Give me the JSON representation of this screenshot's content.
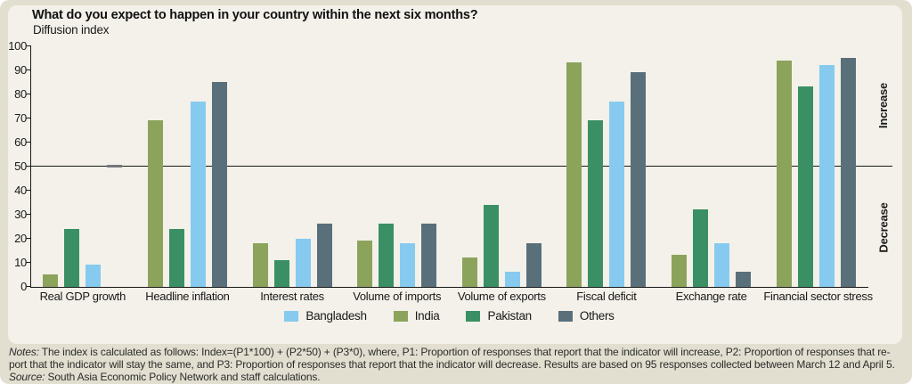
{
  "panel": {
    "title": "What do you expect to happen in your country within the next six months?",
    "subtitle": "Diffusion index"
  },
  "chart_data": {
    "type": "bar",
    "title": "What do you expect to happen in your country within the next six months?",
    "ylabel": "Diffusion index",
    "ylim": [
      0,
      100
    ],
    "ytick_labels": [
      "0",
      "10",
      "20",
      "30",
      "40",
      "50",
      "60",
      "70",
      "80",
      "90",
      "100"
    ],
    "reference_line": 50,
    "grid": false,
    "legend_position": "bottom",
    "categories": [
      "Real GDP growth",
      "Headline inflation",
      "Interest rates",
      "Volume of imports",
      "Volume of exports",
      "Fiscal deficit",
      "Exchange rate",
      "Financial sector stress"
    ],
    "series": [
      {
        "name": "India",
        "color": "#8ca35c",
        "values": [
          5,
          69,
          18,
          19,
          12,
          93,
          13,
          94
        ]
      },
      {
        "name": "Pakistan",
        "color": "#3a9064",
        "values": [
          24,
          24,
          11,
          26,
          34,
          69,
          32,
          83
        ]
      },
      {
        "name": "Bangladesh",
        "color": "#86cbef",
        "values": [
          9,
          77,
          20,
          18,
          6,
          77,
          18,
          92
        ]
      },
      {
        "name": "Others",
        "color": "#59707b",
        "values": [
          50,
          85,
          26,
          26,
          18,
          89,
          6,
          95
        ],
        "dash_at": [
          0
        ],
        "dash_color": "#74797b"
      }
    ],
    "legend": [
      {
        "label": "Bangladesh",
        "color": "#86cbef"
      },
      {
        "label": "India",
        "color": "#8ca35c"
      },
      {
        "label": "Pakistan",
        "color": "#3a9064"
      },
      {
        "label": "Others",
        "color": "#59707b"
      }
    ],
    "right_labels": {
      "above": "Increase",
      "below": "Decrease"
    }
  },
  "notes": {
    "line1_label": "Notes:",
    "line1_text": "The index is calculated as follows: Index=(P1*100) + (P2*50) + (P3*0), where,  P1: Proportion of responses that report that the indicator will increase, P2: Proportion of responses that re-",
    "line2_text": "port that the indicator will stay the same, and P3: Proportion of responses that report that the indicator will decrease. Results are based on 95 responses collected between March 12 and April 5.",
    "line3_label": "Source:",
    "line3_text": "South Asia Economic Policy Network and staff calculations."
  },
  "colors": {
    "panel_background": "#f3f1e9",
    "page_background": "#e2dfd0",
    "axis": "#1a1a1a"
  }
}
